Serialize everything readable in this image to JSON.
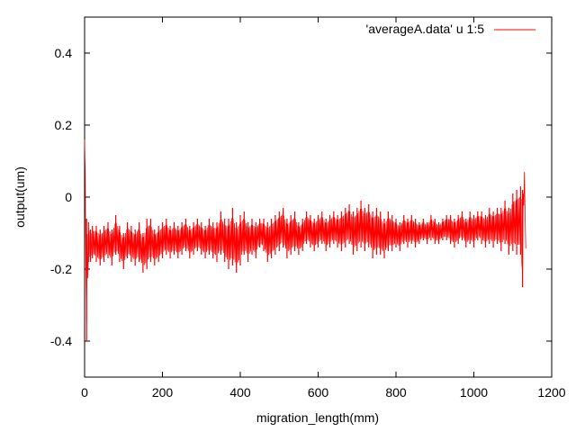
{
  "chart_data": {
    "type": "line",
    "title": "",
    "xlabel": "migration_length(mm)",
    "ylabel": "output(um)",
    "xlim": [
      0,
      1200
    ],
    "ylim": [
      -0.5,
      0.5
    ],
    "x_ticks": [
      0,
      200,
      400,
      600,
      800,
      1000,
      1200
    ],
    "y_ticks": [
      -0.4,
      -0.2,
      0,
      0.2,
      0.4
    ],
    "x_tick_labels": [
      "0",
      "200",
      "400",
      "600",
      "800",
      "1000",
      "1200"
    ],
    "y_tick_labels": [
      "-0.4",
      "-0.2",
      "0",
      "0.2",
      "0.4"
    ],
    "grid": false,
    "legend_position": "top-right",
    "series": [
      {
        "name": "'averageA.data' u 1:5",
        "color": "#ff0000",
        "x": [
          0,
          5,
          10,
          15,
          20,
          30,
          40,
          50,
          60,
          70,
          80,
          90,
          100,
          110,
          120,
          130,
          140,
          150,
          160,
          170,
          180,
          190,
          200,
          210,
          220,
          230,
          240,
          250,
          260,
          270,
          280,
          290,
          300,
          310,
          320,
          330,
          340,
          350,
          360,
          370,
          380,
          390,
          400,
          410,
          420,
          430,
          440,
          450,
          460,
          470,
          480,
          490,
          500,
          510,
          520,
          530,
          540,
          550,
          560,
          570,
          580,
          590,
          600,
          610,
          620,
          630,
          640,
          650,
          660,
          670,
          680,
          690,
          700,
          710,
          720,
          730,
          740,
          750,
          760,
          770,
          780,
          790,
          800,
          810,
          820,
          830,
          840,
          850,
          860,
          870,
          880,
          890,
          900,
          910,
          920,
          930,
          940,
          950,
          960,
          970,
          980,
          990,
          1000,
          1010,
          1020,
          1030,
          1040,
          1050,
          1060,
          1070,
          1080,
          1090,
          1100,
          1110,
          1120,
          1125,
          1130,
          1135
        ],
        "y": [
          0.16,
          -0.4,
          -0.12,
          -0.14,
          -0.13,
          -0.12,
          -0.14,
          -0.13,
          -0.12,
          -0.14,
          -0.11,
          -0.13,
          -0.15,
          -0.12,
          -0.13,
          -0.14,
          -0.12,
          -0.16,
          -0.13,
          -0.12,
          -0.14,
          -0.13,
          -0.12,
          -0.11,
          -0.13,
          -0.12,
          -0.13,
          -0.12,
          -0.11,
          -0.13,
          -0.12,
          -0.11,
          -0.12,
          -0.13,
          -0.11,
          -0.12,
          -0.13,
          -0.1,
          -0.12,
          -0.13,
          -0.11,
          -0.14,
          -0.12,
          -0.1,
          -0.13,
          -0.11,
          -0.12,
          -0.1,
          -0.11,
          -0.13,
          -0.12,
          -0.11,
          -0.1,
          -0.09,
          -0.12,
          -0.11,
          -0.1,
          -0.12,
          -0.11,
          -0.09,
          -0.1,
          -0.11,
          -0.1,
          -0.09,
          -0.11,
          -0.1,
          -0.09,
          -0.1,
          -0.1,
          -0.09,
          -0.08,
          -0.1,
          -0.09,
          -0.08,
          -0.09,
          -0.08,
          -0.1,
          -0.09,
          -0.1,
          -0.11,
          -0.09,
          -0.1,
          -0.1,
          -0.11,
          -0.09,
          -0.1,
          -0.09,
          -0.1,
          -0.1,
          -0.09,
          -0.1,
          -0.08,
          -0.09,
          -0.1,
          -0.09,
          -0.08,
          -0.09,
          -0.1,
          -0.09,
          -0.08,
          -0.1,
          -0.09,
          -0.1,
          -0.08,
          -0.09,
          -0.1,
          -0.08,
          -0.09,
          -0.08,
          -0.09,
          -0.07,
          -0.09,
          -0.08,
          -0.08,
          -0.07,
          -0.08,
          0.07,
          -0.25
        ],
        "y_min_envelope": [
          0.16,
          -0.4,
          -0.18,
          -0.18,
          -0.17,
          -0.18,
          -0.19,
          -0.18,
          -0.17,
          -0.19,
          -0.16,
          -0.18,
          -0.2,
          -0.17,
          -0.18,
          -0.19,
          -0.18,
          -0.21,
          -0.2,
          -0.18,
          -0.19,
          -0.18,
          -0.17,
          -0.16,
          -0.17,
          -0.16,
          -0.17,
          -0.16,
          -0.15,
          -0.17,
          -0.16,
          -0.15,
          -0.16,
          -0.17,
          -0.16,
          -0.17,
          -0.18,
          -0.16,
          -0.18,
          -0.2,
          -0.19,
          -0.21,
          -0.19,
          -0.16,
          -0.18,
          -0.16,
          -0.17,
          -0.14,
          -0.15,
          -0.18,
          -0.17,
          -0.16,
          -0.15,
          -0.14,
          -0.17,
          -0.16,
          -0.15,
          -0.16,
          -0.15,
          -0.13,
          -0.14,
          -0.15,
          -0.14,
          -0.13,
          -0.15,
          -0.14,
          -0.13,
          -0.14,
          -0.15,
          -0.14,
          -0.13,
          -0.16,
          -0.15,
          -0.14,
          -0.15,
          -0.14,
          -0.17,
          -0.16,
          -0.16,
          -0.17,
          -0.15,
          -0.15,
          -0.14,
          -0.15,
          -0.13,
          -0.14,
          -0.13,
          -0.14,
          -0.13,
          -0.12,
          -0.13,
          -0.12,
          -0.13,
          -0.13,
          -0.12,
          -0.12,
          -0.13,
          -0.14,
          -0.13,
          -0.12,
          -0.14,
          -0.13,
          -0.14,
          -0.12,
          -0.13,
          -0.14,
          -0.13,
          -0.14,
          -0.13,
          -0.15,
          -0.13,
          -0.16,
          -0.15,
          -0.16,
          -0.16,
          -0.25,
          0.07,
          -0.25
        ],
        "y_max_envelope": [
          0.16,
          -0.06,
          -0.07,
          -0.09,
          -0.08,
          -0.08,
          -0.09,
          -0.08,
          -0.07,
          -0.09,
          -0.05,
          -0.08,
          -0.1,
          -0.07,
          -0.08,
          -0.09,
          -0.07,
          -0.1,
          -0.06,
          -0.06,
          -0.09,
          -0.08,
          -0.07,
          -0.06,
          -0.08,
          -0.07,
          -0.08,
          -0.07,
          -0.06,
          -0.08,
          -0.07,
          -0.06,
          -0.07,
          -0.08,
          -0.06,
          -0.07,
          -0.07,
          -0.04,
          -0.06,
          -0.06,
          -0.03,
          -0.07,
          -0.05,
          -0.04,
          -0.07,
          -0.06,
          -0.07,
          -0.06,
          -0.06,
          -0.07,
          -0.06,
          -0.05,
          -0.04,
          -0.03,
          -0.06,
          -0.05,
          -0.04,
          -0.07,
          -0.06,
          -0.04,
          -0.05,
          -0.06,
          -0.05,
          -0.04,
          -0.06,
          -0.05,
          -0.04,
          -0.05,
          -0.04,
          -0.03,
          -0.02,
          -0.04,
          -0.03,
          -0.01,
          -0.03,
          -0.02,
          -0.04,
          -0.03,
          -0.04,
          -0.06,
          -0.04,
          -0.05,
          -0.06,
          -0.07,
          -0.05,
          -0.06,
          -0.05,
          -0.06,
          -0.07,
          -0.06,
          -0.07,
          -0.05,
          -0.06,
          -0.07,
          -0.06,
          -0.05,
          -0.05,
          -0.06,
          -0.05,
          -0.04,
          -0.06,
          -0.04,
          -0.05,
          -0.04,
          -0.04,
          -0.05,
          -0.03,
          -0.04,
          -0.03,
          -0.03,
          -0.01,
          -0.03,
          0.01,
          0.02,
          0.03,
          0.02,
          0.07,
          -0.25
        ]
      }
    ]
  }
}
